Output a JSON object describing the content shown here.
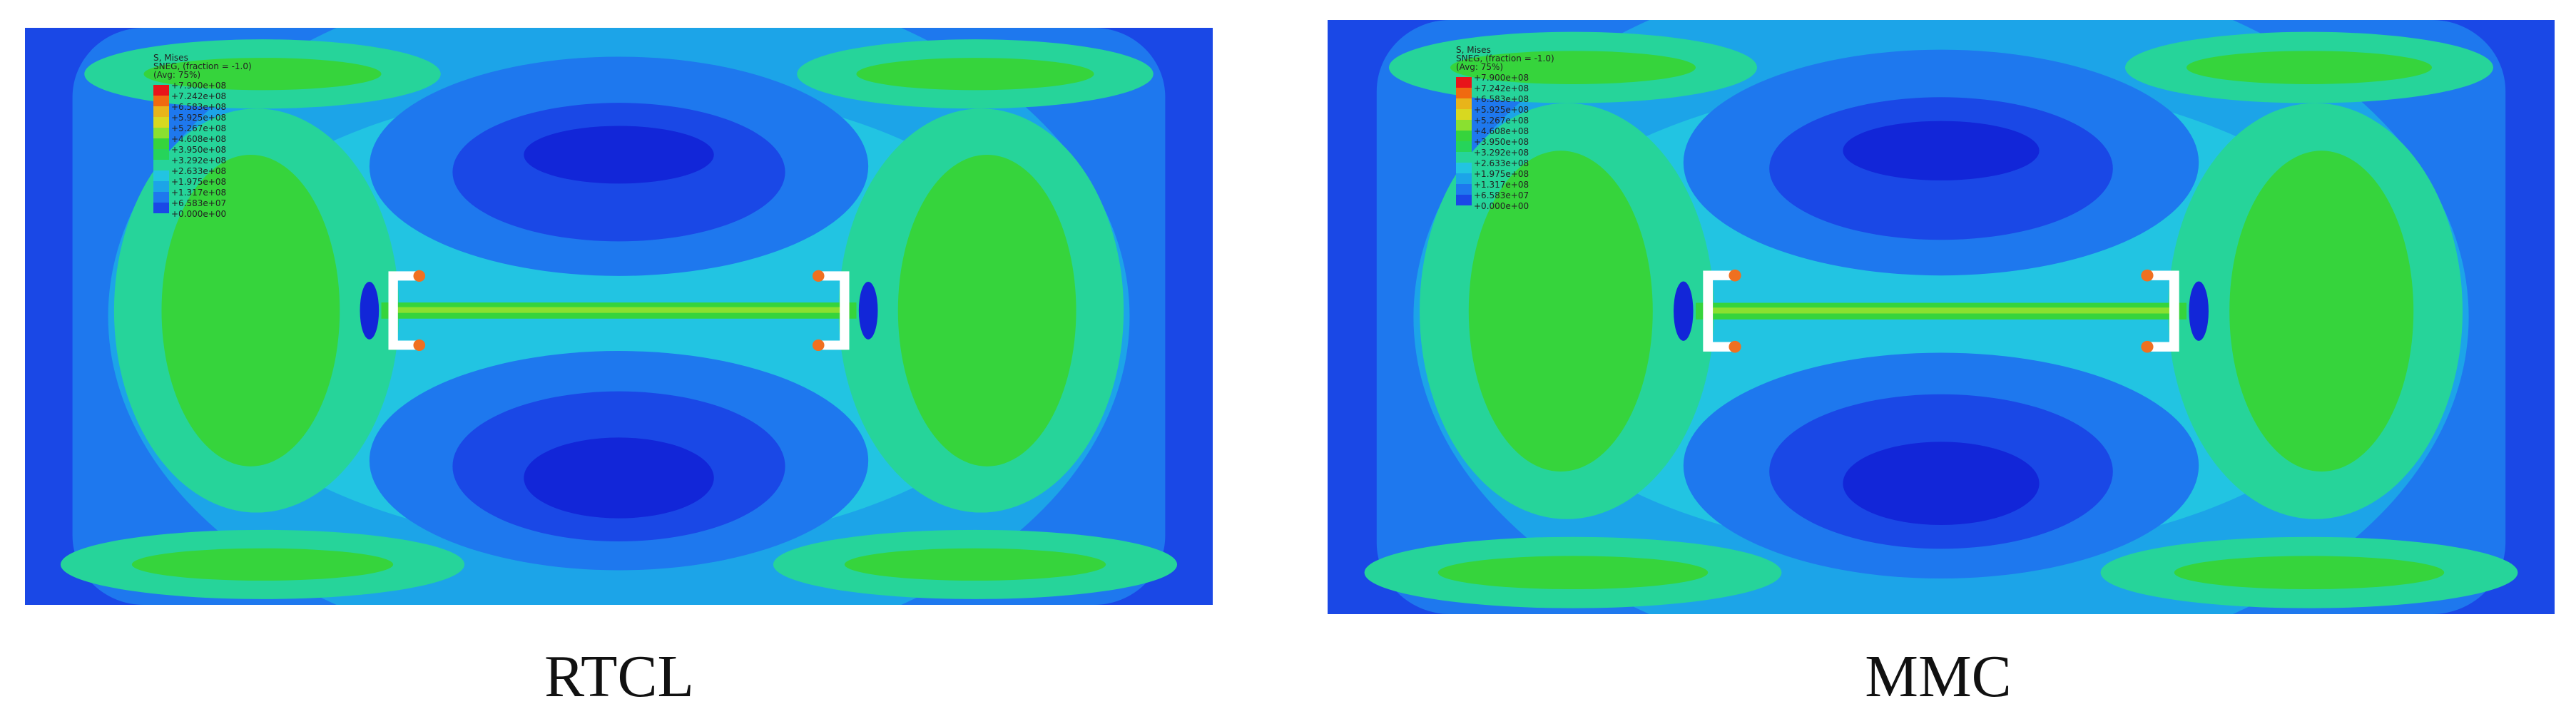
{
  "panels": [
    {
      "caption": "RTCL",
      "legend": {
        "header": [
          "S, Mises",
          "SNEG, (fraction = -1.0)",
          "(Avg: 75%)"
        ],
        "labels": [
          "+7.900e+08",
          "+7.242e+08",
          "+6.583e+08",
          "+5.925e+08",
          "+5.267e+08",
          "+4.608e+08",
          "+3.950e+08",
          "+3.292e+08",
          "+2.633e+08",
          "+1.975e+08",
          "+1.317e+08",
          "+6.583e+07",
          "+0.000e+00"
        ]
      }
    },
    {
      "caption": "MMC",
      "legend": {
        "header": [
          "S, Mises",
          "SNEG, (fraction = -1.0)",
          "(Avg: 75%)"
        ],
        "labels": [
          "+7.900e+08",
          "+7.242e+08",
          "+6.583e+08",
          "+5.925e+08",
          "+5.267e+08",
          "+4.608e+08",
          "+3.950e+08",
          "+3.292e+08",
          "+2.633e+08",
          "+1.975e+08",
          "+1.317e+08",
          "+6.583e+07",
          "+0.000e+00"
        ]
      }
    }
  ]
}
